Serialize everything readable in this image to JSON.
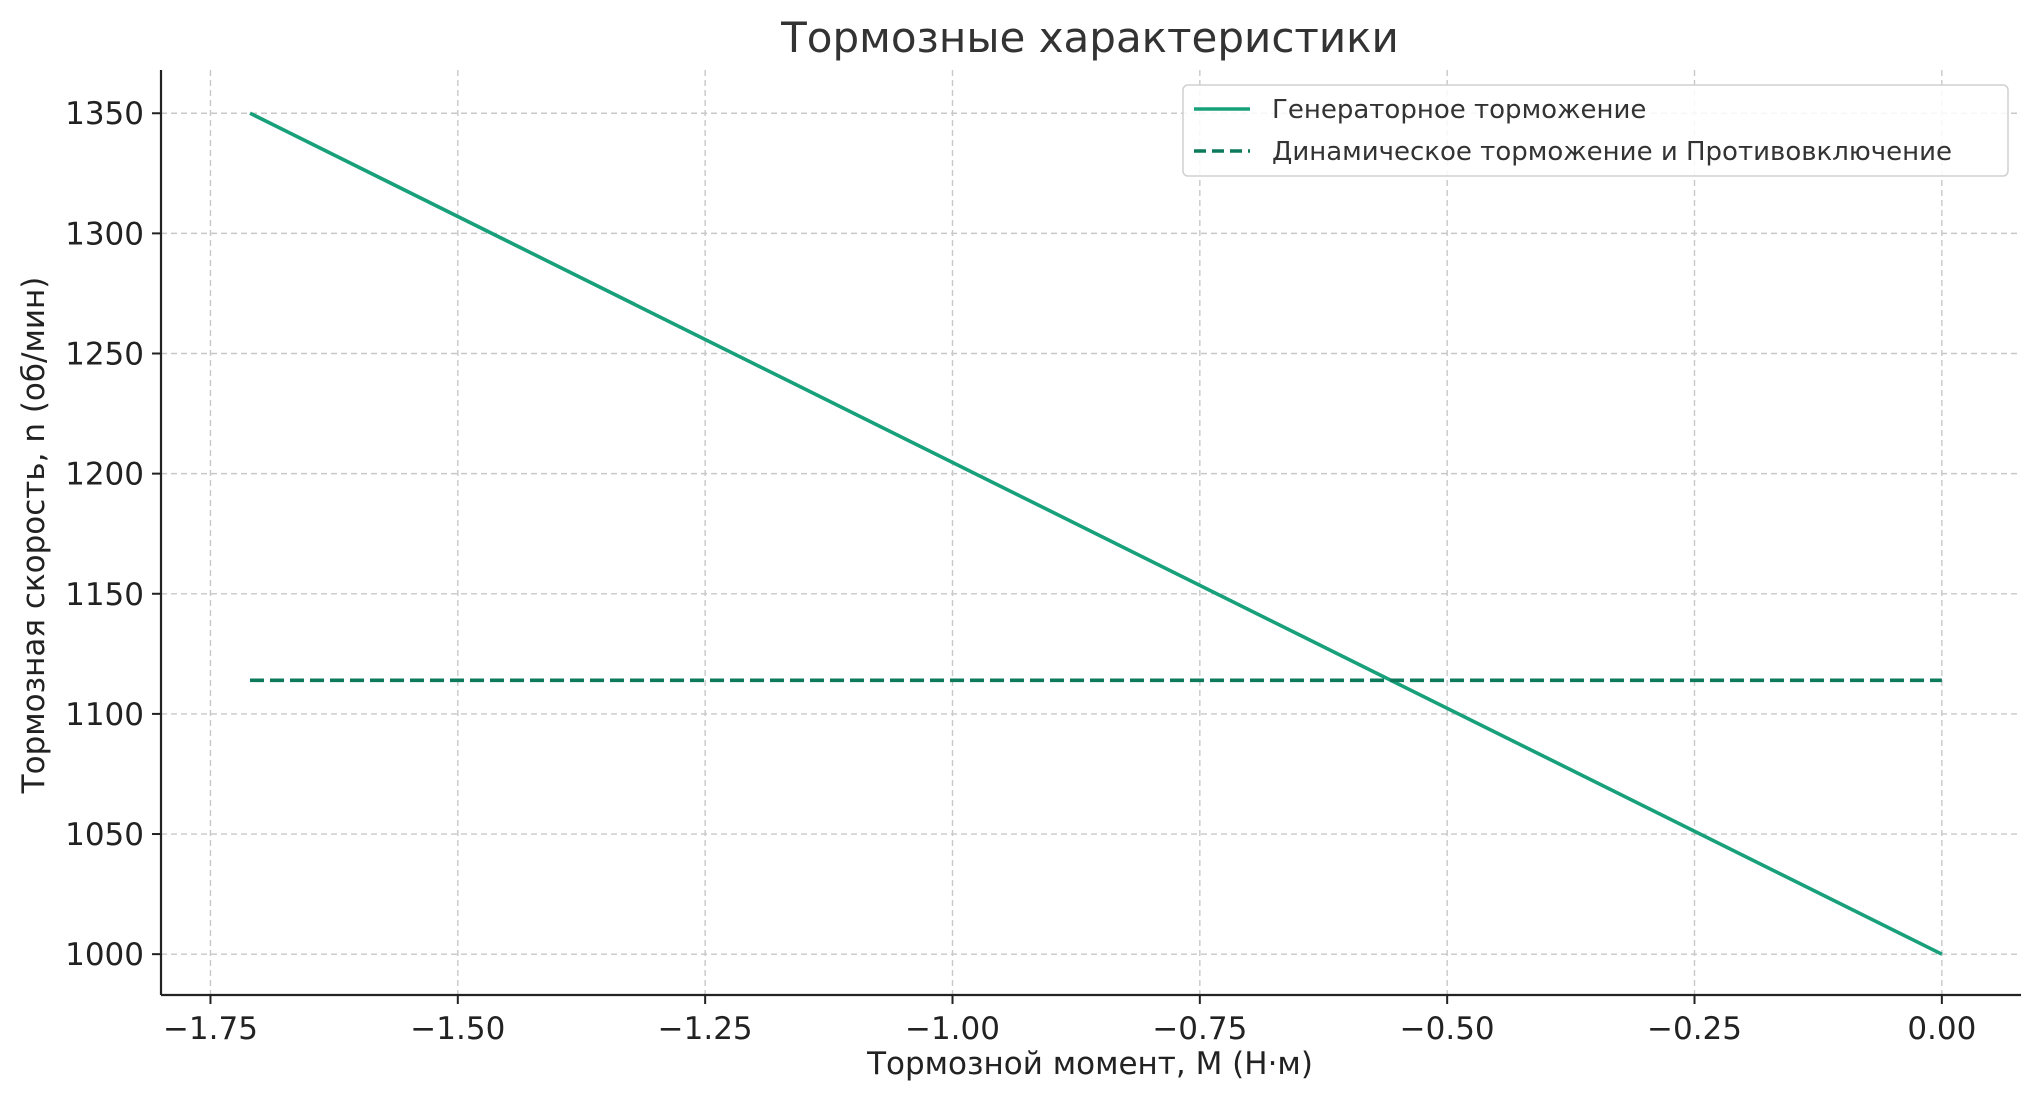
{
  "chart_data": {
    "type": "line",
    "title": "Тормозные характеристики",
    "xlabel": "Тормозной момент, M (Н·м)",
    "ylabel": "Тормозная скорость, n (об/мин)",
    "xlim": [
      -1.8,
      0.08
    ],
    "ylim": [
      983,
      1368
    ],
    "x_ticks": [
      -1.75,
      -1.5,
      -1.25,
      -1.0,
      -0.75,
      -0.5,
      -0.25,
      0.0
    ],
    "x_tick_labels": [
      "−1.75",
      "−1.50",
      "−1.25",
      "−1.00",
      "−0.75",
      "−0.50",
      "−0.25",
      "0.00"
    ],
    "y_ticks": [
      1000,
      1050,
      1100,
      1150,
      1200,
      1250,
      1300,
      1350
    ],
    "y_tick_labels": [
      "1000",
      "1050",
      "1100",
      "1150",
      "1200",
      "1250",
      "1300",
      "1350"
    ],
    "grid": true,
    "legend_position": "top-right",
    "series": [
      {
        "name": "Генераторное торможение",
        "style": "solid",
        "color": "#17a07a",
        "x": [
          -1.71,
          0.0
        ],
        "y": [
          1350,
          1000
        ]
      },
      {
        "name": "Динамическое торможение и Противовключение",
        "style": "dashed",
        "color": "#0d7a5c",
        "x": [
          -1.71,
          0.0
        ],
        "y": [
          1114,
          1114
        ]
      }
    ]
  }
}
